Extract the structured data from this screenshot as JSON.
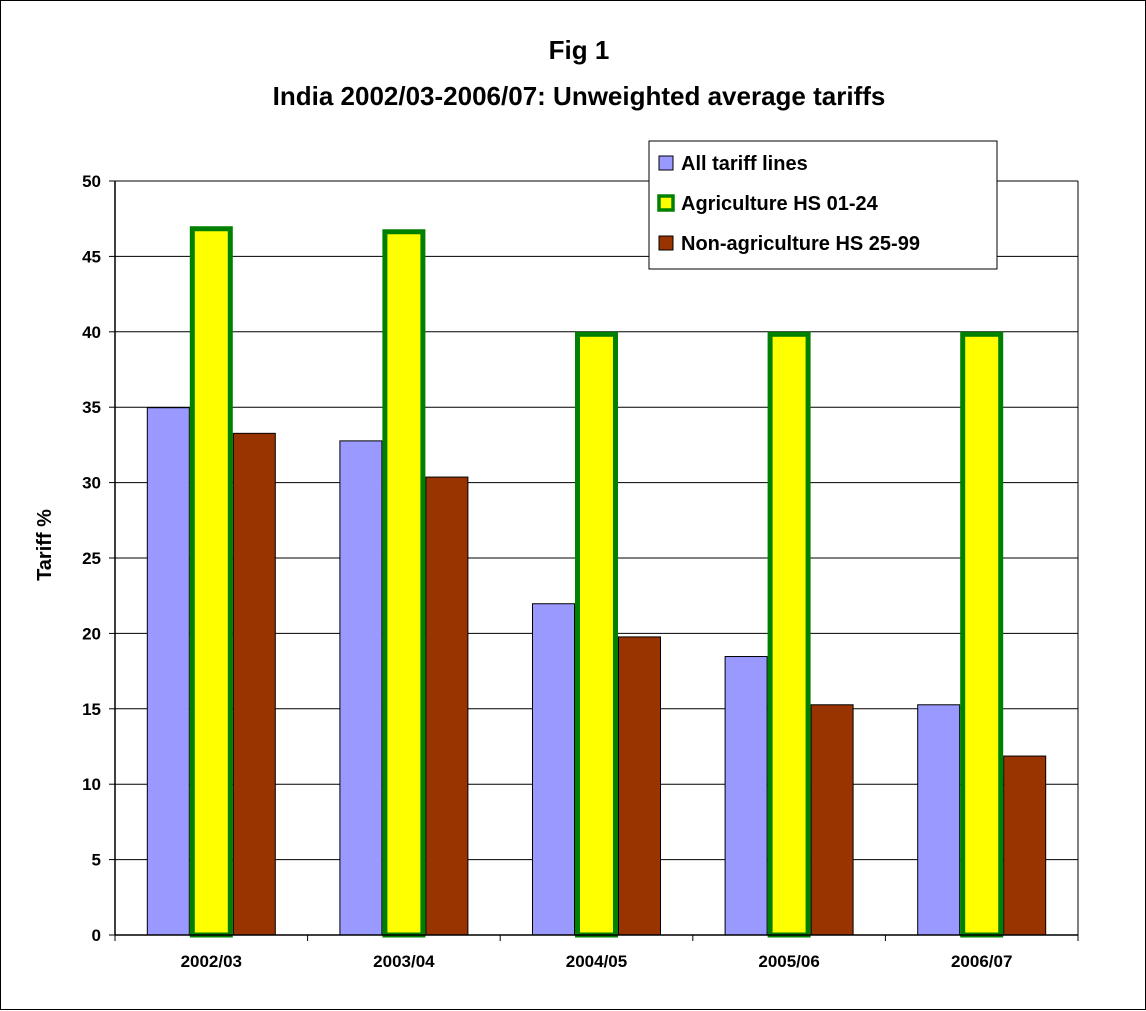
{
  "chart_data": {
    "type": "bar",
    "title_lines": [
      "Fig 1",
      "India  2002/03-2006/07: Unweighted average tariffs"
    ],
    "xlabel": "",
    "ylabel": "Tariff %",
    "ylim": [
      0,
      50
    ],
    "ytick_step": 5,
    "grid": true,
    "legend_position": "top-right",
    "categories": [
      "2002/03",
      "2003/04",
      "2004/05",
      "2005/06",
      "2006/07"
    ],
    "series": [
      {
        "name": "All tariff lines",
        "values": [
          35.0,
          32.8,
          22.0,
          18.5,
          15.3
        ],
        "fill": "#9999ff",
        "stroke": "#000000"
      },
      {
        "name": "Agriculture HS 01-24",
        "values": [
          47.0,
          46.8,
          40.0,
          40.0,
          40.0
        ],
        "fill": "#ffff00",
        "stroke": "#008000"
      },
      {
        "name": "Non-agriculture HS 25-99",
        "values": [
          33.3,
          30.4,
          19.8,
          15.3,
          11.9
        ],
        "fill": "#993300",
        "stroke": "#000000"
      }
    ]
  }
}
